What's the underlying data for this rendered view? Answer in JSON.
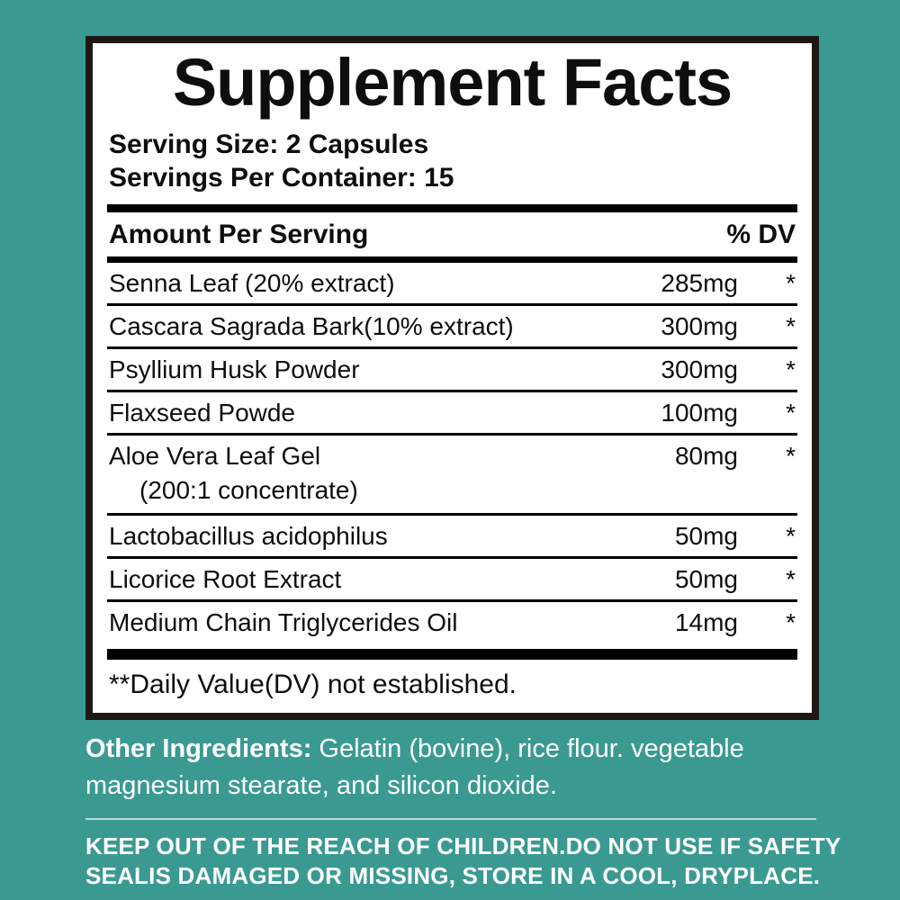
{
  "colors": {
    "background": "#3A9A92",
    "panel": "#FFFFFF",
    "panel_border": "#1F1713",
    "text": "#0E0E0E",
    "footer_text": "#FFFFFF"
  },
  "panel": {
    "title": "Supplement Facts",
    "serving_size": "Serving Size: 2 Capsules",
    "servings_per_container": "Servings Per Container: 15",
    "header": {
      "amount_label": "Amount Per Serving",
      "dv_label": "% DV"
    },
    "rows": [
      {
        "name": "Senna Leaf (20% extract)",
        "amount": "285mg",
        "dv": "*"
      },
      {
        "name": "Cascara Sagrada Bark(10% extract)",
        "amount": "300mg",
        "dv": "*"
      },
      {
        "name": "Psyllium Husk Powder",
        "amount": "300mg",
        "dv": "*"
      },
      {
        "name": "Flaxseed Powde",
        "amount": "100mg",
        "dv": "*"
      },
      {
        "name": "Aloe Vera Leaf Gel",
        "sub": "(200:1 concentrate)",
        "amount": "80mg",
        "dv": "*"
      },
      {
        "name": "Lactobacillus acidophilus",
        "amount": "50mg",
        "dv": "*"
      },
      {
        "name": "Licorice Root Extract",
        "amount": "50mg",
        "dv": "*"
      },
      {
        "name": "Medium Chain Triglycerides Oil",
        "amount": "14mg",
        "dv": "*"
      }
    ],
    "footnote": "**Daily Value(DV) not established."
  },
  "footer": {
    "other_ingredients_label": "Other Ingredients:",
    "other_ingredients_line1": " Gelatin (bovine), rice flour. vegetable",
    "other_ingredients_line2": "magnesium stearate, and silicon dioxide.",
    "warning_line1": "KEEP OUT OF THE REACH OF CHILDREN.DO NOT USE IF SAFETY",
    "warning_line2": "SEALIS DAMAGED OR MISSING, STORE IN A COOL, DRYPLACE."
  }
}
